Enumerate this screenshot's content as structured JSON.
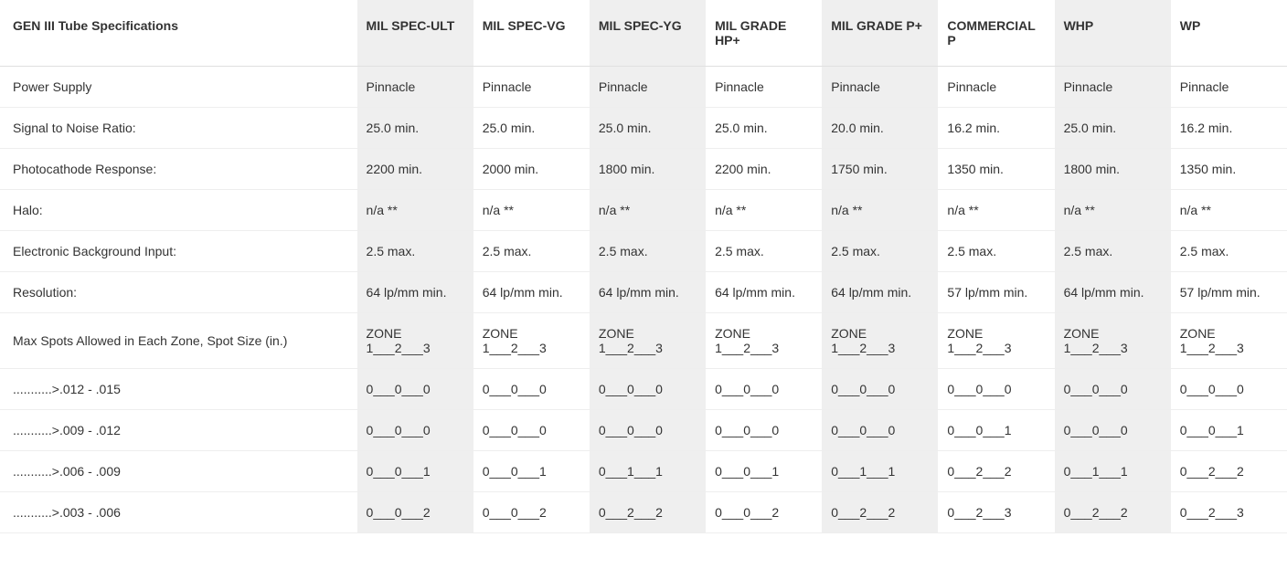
{
  "table": {
    "headerLabel": "GEN III Tube Specifications",
    "columns": [
      {
        "label": "MIL SPEC-ULT",
        "shaded": true
      },
      {
        "label": "MIL SPEC-VG",
        "shaded": false
      },
      {
        "label": "MIL SPEC-YG",
        "shaded": true
      },
      {
        "label": "MIL GRADE HP+",
        "shaded": false
      },
      {
        "label": "MIL GRADE P+",
        "shaded": true
      },
      {
        "label": "COMMERCIAL P",
        "shaded": false
      },
      {
        "label": "WHP",
        "shaded": true
      },
      {
        "label": "WP",
        "shaded": false
      }
    ],
    "rows": [
      {
        "label": "Power Supply",
        "cells": [
          "Pinnacle",
          "Pinnacle",
          "Pinnacle",
          "Pinnacle",
          "Pinnacle",
          "Pinnacle",
          "Pinnacle",
          "Pinnacle"
        ]
      },
      {
        "label": "Signal to Noise Ratio:",
        "cells": [
          "25.0 min.",
          "25.0 min.",
          "25.0 min.",
          "25.0 min.",
          "20.0 min.",
          "16.2 min.",
          "25.0 min.",
          "16.2 min."
        ]
      },
      {
        "label": "Photocathode Response:",
        "cells": [
          "2200 min.",
          "2000 min.",
          "1800 min.",
          "2200 min.",
          "1750 min.",
          "1350 min.",
          "1800 min.",
          "1350 min."
        ]
      },
      {
        "label": "Halo:",
        "cells": [
          "n/a **",
          "n/a **",
          "n/a **",
          "n/a **",
          "n/a **",
          "n/a **",
          "n/a **",
          "n/a **"
        ]
      },
      {
        "label": "Electronic Background Input:",
        "cells": [
          "2.5 max.",
          "2.5 max.",
          "2.5 max.",
          "2.5 max.",
          "2.5 max.",
          "2.5 max.",
          "2.5 max.",
          "2.5 max."
        ]
      },
      {
        "label": "Resolution:",
        "cells": [
          "64 lp/mm min.",
          "64 lp/mm min.",
          "64 lp/mm min.",
          "64 lp/mm min.",
          "64 lp/mm min.",
          "57 lp/mm min.",
          "64 lp/mm min.",
          "57 lp/mm min."
        ]
      },
      {
        "label": "Max Spots Allowed in Each Zone, Spot Size (in.)",
        "cells": [
          "ZONE 1___2___3",
          "ZONE 1___2___3",
          "ZONE 1___2___3",
          "ZONE 1___2___3",
          "ZONE 1___2___3",
          "ZONE 1___2___3",
          "ZONE 1___2___3",
          "ZONE 1___2___3"
        ]
      },
      {
        "label": "...........>.012 - .015",
        "cells": [
          "0___0___0",
          "0___0___0",
          "0___0___0",
          "0___0___0",
          "0___0___0",
          "0___0___0",
          "0___0___0",
          "0___0___0"
        ]
      },
      {
        "label": "...........>.009 - .012",
        "cells": [
          "0___0___0",
          "0___0___0",
          "0___0___0",
          "0___0___0",
          "0___0___0",
          "0___0___1",
          "0___0___0",
          "0___0___1"
        ]
      },
      {
        "label": "...........>.006 - .009",
        "cells": [
          "0___0___1",
          "0___0___1",
          "0___1___1",
          "0___0___1",
          "0___1___1",
          "0___2___2",
          "0___1___1",
          "0___2___2"
        ]
      },
      {
        "label": "...........>.003 - .006",
        "cells": [
          "0___0___2",
          "0___0___2",
          "0___2___2",
          "0___0___2",
          "0___2___2",
          "0___2___3",
          "0___2___2",
          "0___2___3"
        ]
      }
    ]
  },
  "styling": {
    "shadedBg": "#efefef",
    "unshadedBg": "#ffffff",
    "textColor": "#333333",
    "borderColor": "#eeeeee",
    "fontSize": 14,
    "headerFontWeight": "bold"
  }
}
